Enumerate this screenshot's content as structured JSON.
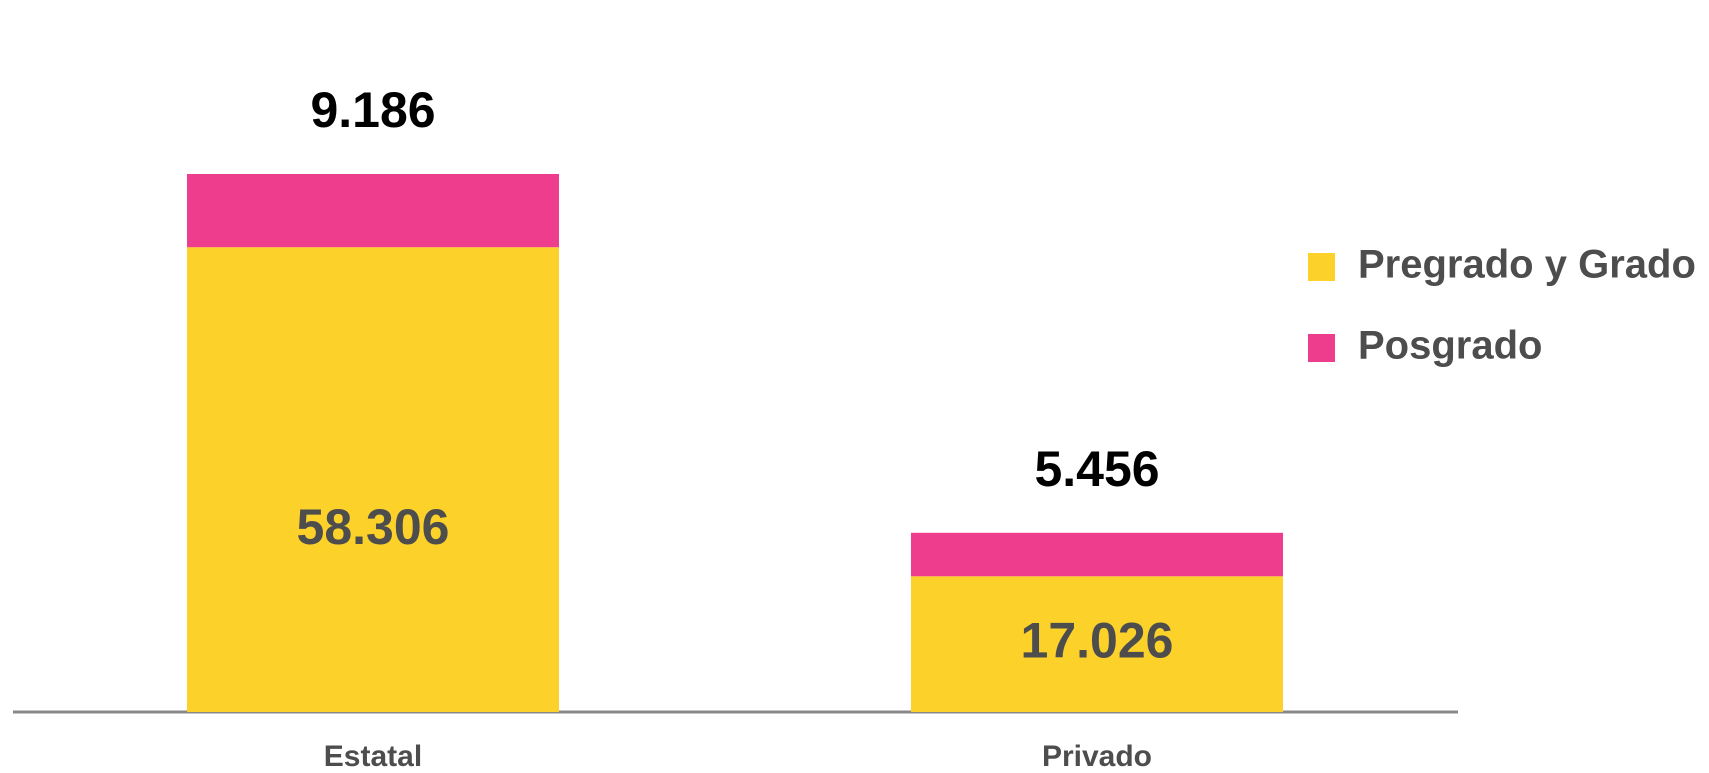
{
  "chart_data": {
    "type": "stacked-bar",
    "categories": [
      "Estatal",
      "Privado"
    ],
    "series": [
      {
        "name": "Pregrado y Grado",
        "color": "#fbd12a",
        "values": [
          58306,
          17026
        ],
        "value_labels": [
          "58.306",
          "17.026"
        ]
      },
      {
        "name": "Posgrado",
        "color": "#ee3d8c",
        "values": [
          9186,
          5456
        ],
        "value_labels": [
          "9.186",
          "5.456"
        ]
      }
    ],
    "legend": "right"
  }
}
